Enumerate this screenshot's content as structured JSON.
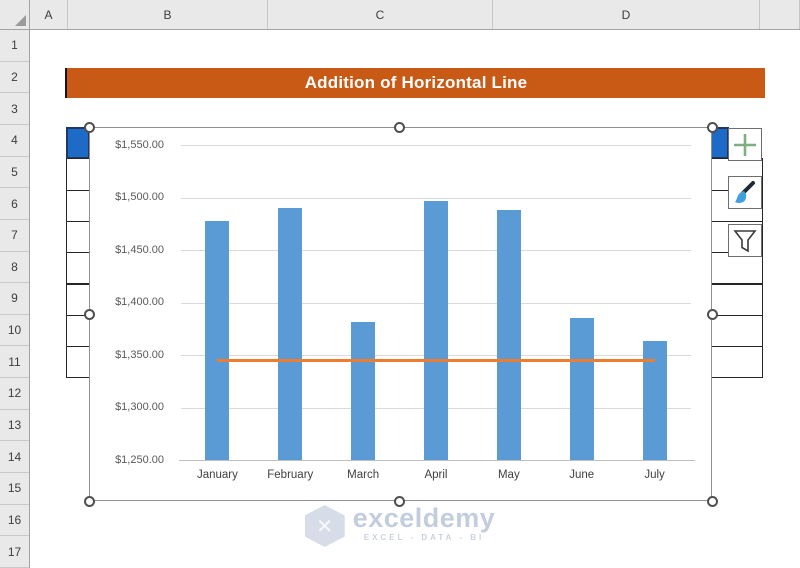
{
  "grid": {
    "column_headers": [
      "A",
      "B",
      "C",
      "D"
    ],
    "row_headers": [
      "1",
      "2",
      "3",
      "4",
      "5",
      "6",
      "7",
      "8",
      "9",
      "10",
      "11",
      "12",
      "13",
      "14",
      "15",
      "16",
      "17"
    ],
    "selected_cell_color": "#1D6BC6"
  },
  "banner": {
    "title": "Addition of Horizontal Line",
    "bg_color": "#C85A15",
    "text_color": "#FFFFFF"
  },
  "chart_data": {
    "type": "bar",
    "title": "",
    "categories": [
      "January",
      "February",
      "March",
      "April",
      "May",
      "June",
      "July"
    ],
    "series": [
      {
        "name": "monthly-values",
        "type": "bar",
        "color": "#5B9BD5",
        "values": [
          1478,
          1490,
          1381,
          1497,
          1488,
          1385,
          1363
        ]
      },
      {
        "name": "horizontal-line",
        "type": "line",
        "color": "#ED7D31",
        "values": [
          1345,
          1345,
          1345,
          1345,
          1345,
          1345,
          1345
        ]
      }
    ],
    "ylim": [
      1250,
      1550
    ],
    "ytick_step": 50,
    "ytick_labels": [
      "$1,550.00",
      "$1,500.00",
      "$1,450.00",
      "$1,400.00",
      "$1,350.00",
      "$1,300.00",
      "$1,250.00"
    ],
    "xlabel": "",
    "ylabel": "",
    "grid": true,
    "legend": "none"
  },
  "chart_buttons": [
    {
      "name": "chart-elements",
      "icon": "plus-icon"
    },
    {
      "name": "chart-styles",
      "icon": "brush-icon"
    },
    {
      "name": "chart-filters",
      "icon": "funnel-icon"
    }
  ],
  "watermark": {
    "brand": "exceldemy",
    "tagline": "EXCEL - DATA - BI",
    "color": "#C3CDDE"
  }
}
